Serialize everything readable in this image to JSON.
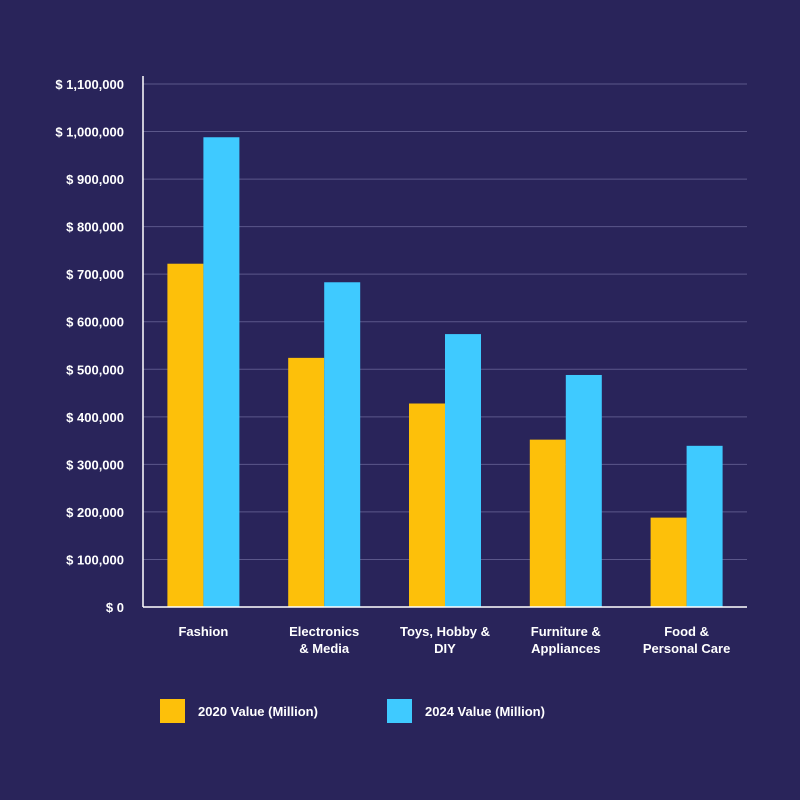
{
  "colors": {
    "background": "#29245a",
    "grid": "#5b578a",
    "axis": "#ffffff",
    "text": "#ffffff",
    "series_2020": "#fdc00a",
    "series_2024": "#3fcaff"
  },
  "chart_data": {
    "type": "bar",
    "title": "",
    "xlabel": "",
    "ylabel": "",
    "categories": [
      [
        "Fashion"
      ],
      [
        "Electronics",
        "& Media"
      ],
      [
        "Toys, Hobby &",
        "DIY"
      ],
      [
        "Furniture &",
        "Appliances"
      ],
      [
        "Food &",
        "Personal Care"
      ]
    ],
    "series": [
      {
        "name": "2020 Value (Million)",
        "color": "#fdc00a",
        "values": [
          722000,
          524000,
          428000,
          352000,
          188000
        ]
      },
      {
        "name": "2024 Value (Million)",
        "color": "#3fcaff",
        "values": [
          988000,
          683000,
          574000,
          488000,
          339000
        ]
      }
    ],
    "ylim": [
      0,
      1100000
    ],
    "yticks": [
      0,
      100000,
      200000,
      300000,
      400000,
      500000,
      600000,
      700000,
      800000,
      900000,
      1000000,
      1100000
    ],
    "ytick_labels": [
      "$ 0",
      "$ 100,000",
      "$ 200,000",
      "$ 300,000",
      "$ 400,000",
      "$ 500,000",
      "$ 600,000",
      "$ 700,000",
      "$ 800,000",
      "$ 900,000",
      "$ 1,000,000",
      "$ 1,100,000"
    ],
    "grid": true,
    "legend_position": "bottom"
  }
}
